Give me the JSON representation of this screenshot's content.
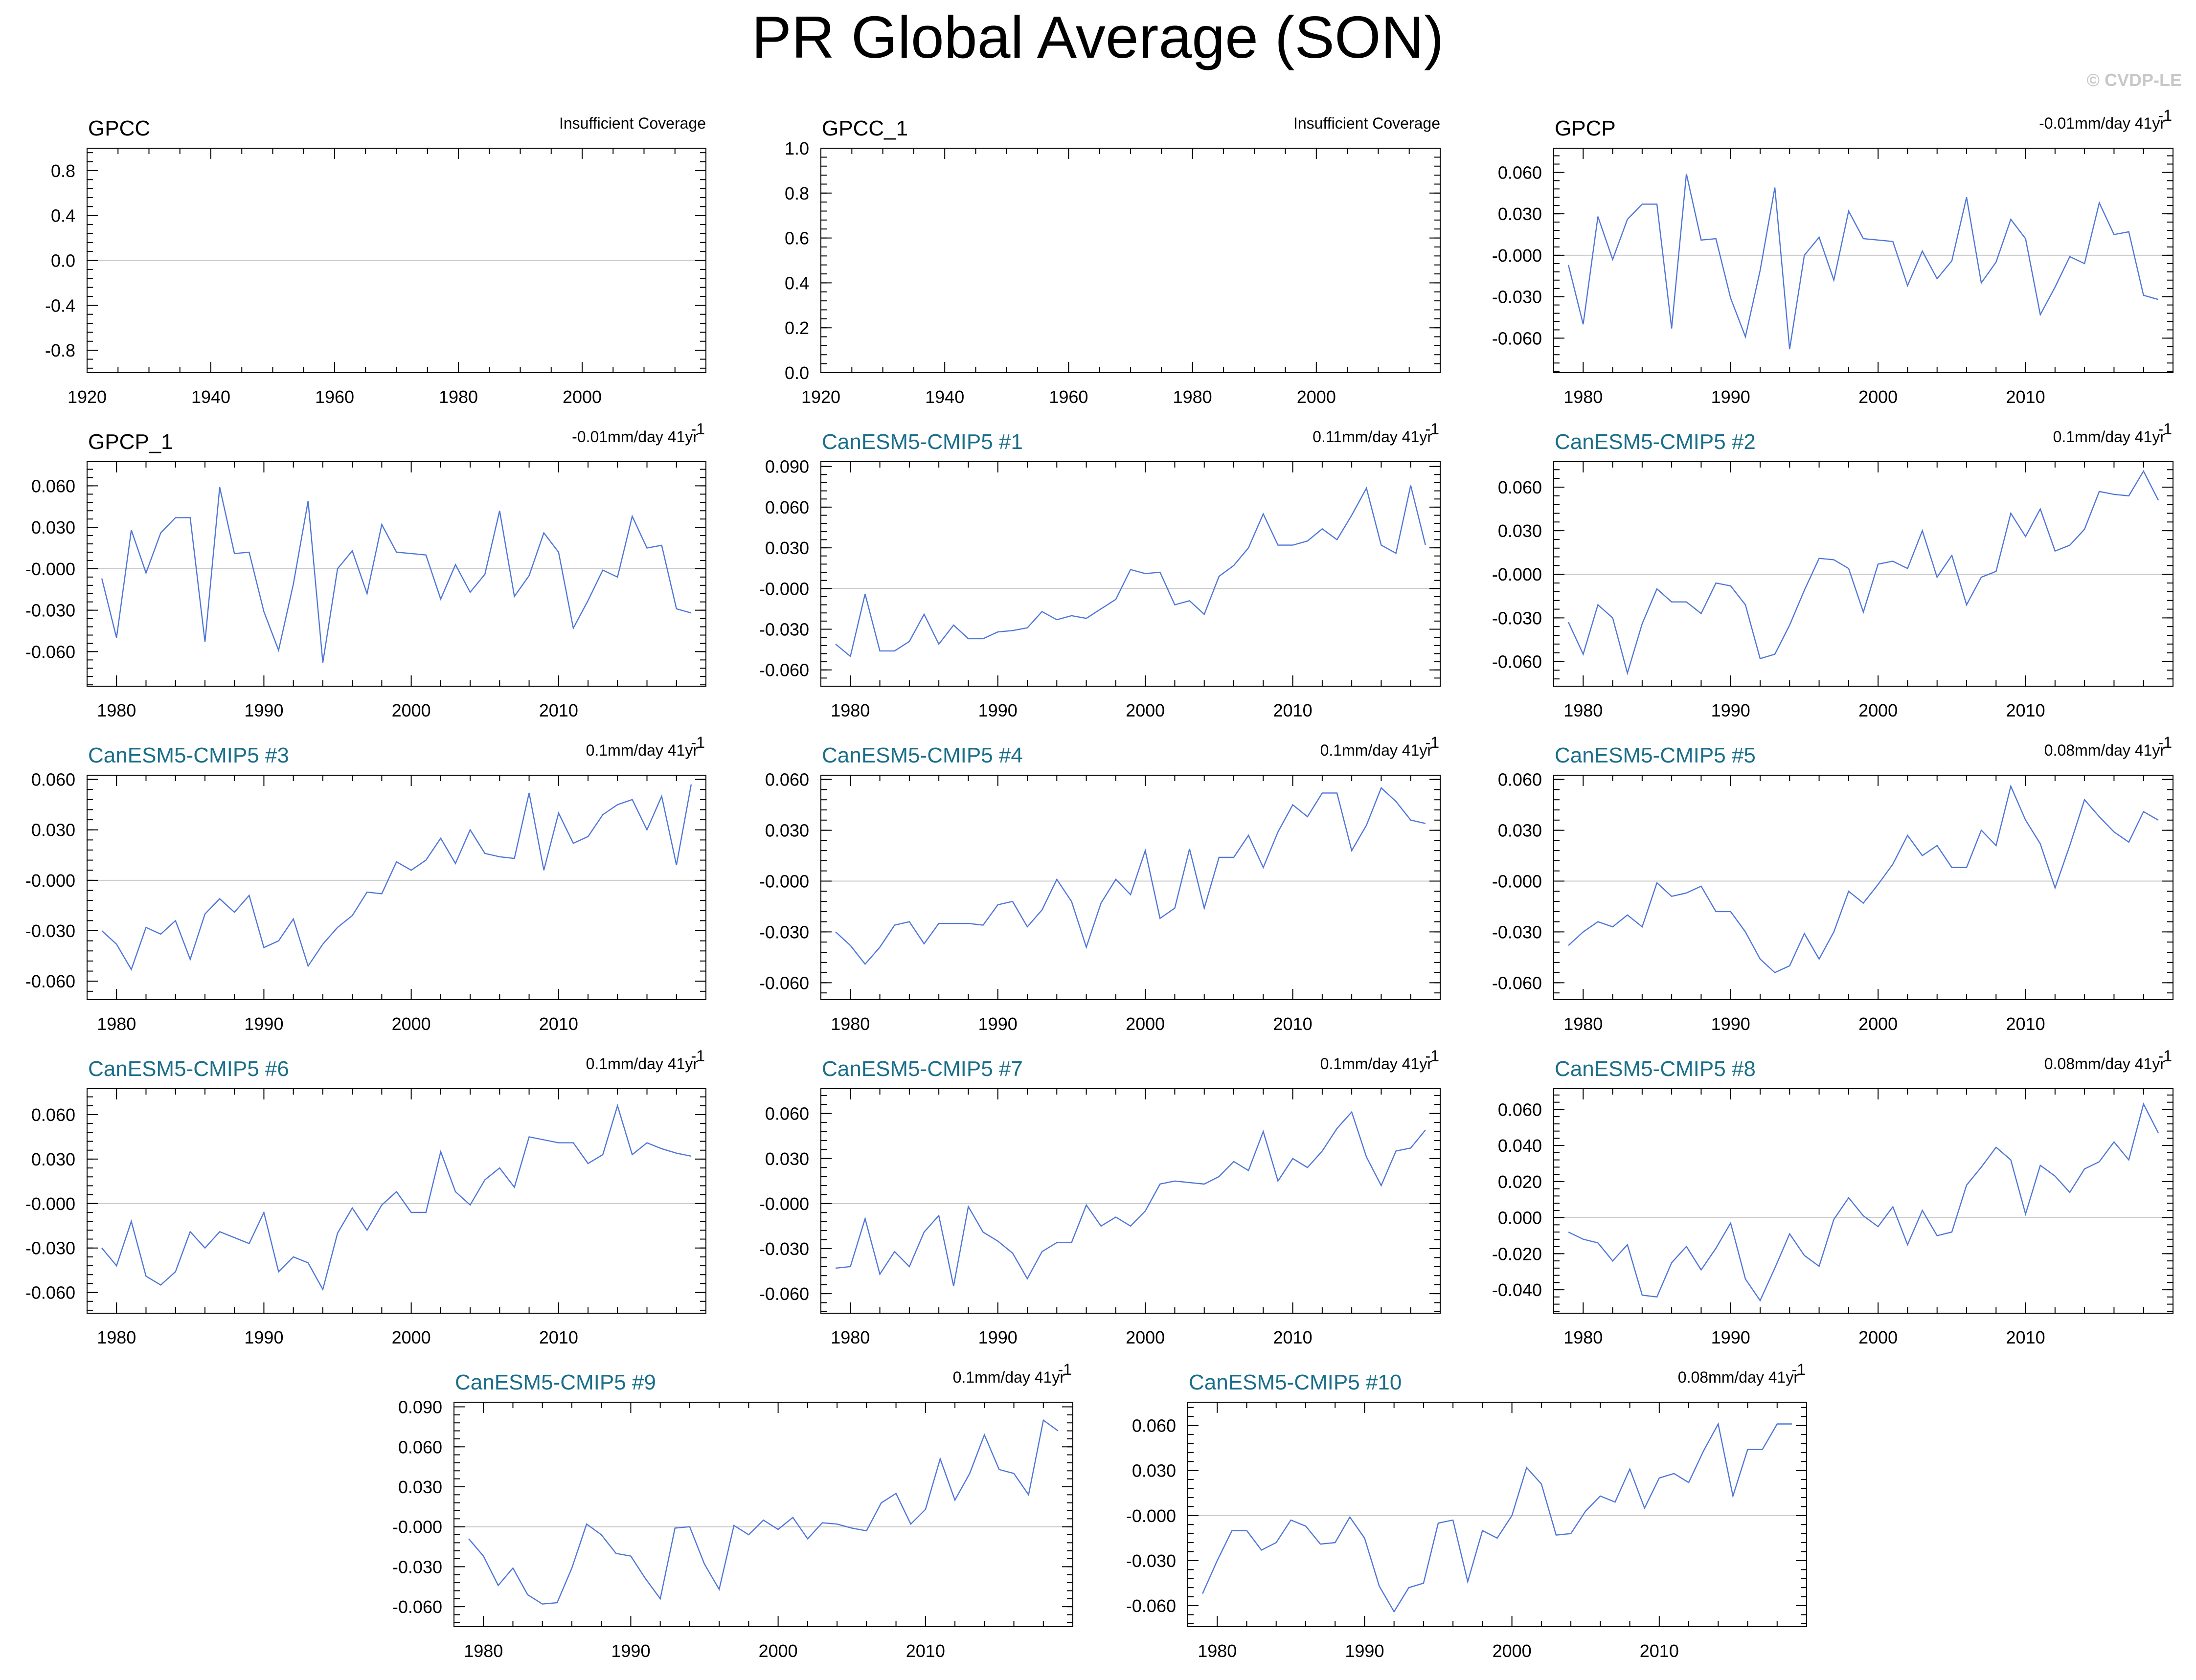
{
  "title": "PR Global Average (SON)",
  "copyright": "© CVDP-LE",
  "colors": {
    "series": "#4f76d9",
    "model_title": "#1a6e8a",
    "zero_line": "#c8c8c8"
  },
  "chart_data": [
    {
      "type": "line",
      "title": "GPCC",
      "title_style": "obs",
      "annotation": "Insufficient Coverage",
      "xlim": [
        1920,
        2020
      ],
      "ylim": [
        -1.0,
        1.0
      ],
      "xticks": [
        1920,
        1940,
        1960,
        1980,
        2000
      ],
      "yticks": [
        0.8,
        0.4,
        0.0,
        -0.4,
        -0.8
      ],
      "ytick_labels": [
        "0.8",
        "0.4",
        "0.0",
        "-0.4",
        "-0.8"
      ],
      "zero_line": true,
      "x": [],
      "y": []
    },
    {
      "type": "line",
      "title": "GPCC_1",
      "title_style": "obs",
      "annotation": "Insufficient Coverage",
      "xlim": [
        1920,
        2020
      ],
      "ylim": [
        0.0,
        1.0
      ],
      "xticks": [
        1920,
        1940,
        1960,
        1980,
        2000
      ],
      "yticks": [
        1.0,
        0.8,
        0.6,
        0.4,
        0.2,
        0.0
      ],
      "ytick_labels": [
        "1.0",
        "0.8",
        "0.6",
        "0.4",
        "0.2",
        "0.0"
      ],
      "zero_line": false,
      "x": [],
      "y": []
    },
    {
      "type": "line",
      "title": "GPCP",
      "title_style": "obs",
      "annotation": "-0.01mm/day 41yr",
      "xlim": [
        1978,
        2020
      ],
      "ylim": [
        -0.085,
        0.0775
      ],
      "xticks": [
        1980,
        1990,
        2000,
        2010
      ],
      "yticks": [
        0.06,
        0.03,
        0.0,
        -0.03,
        -0.06
      ],
      "ytick_labels": [
        "0.060",
        "0.030",
        "-0.000",
        "-0.030",
        "-0.060"
      ],
      "zero_line": true,
      "x_start": 1979,
      "y": [
        -0.007,
        -0.05,
        0.028,
        -0.003,
        0.026,
        0.037,
        0.037,
        -0.053,
        0.059,
        0.011,
        0.012,
        -0.031,
        -0.059,
        -0.011,
        0.049,
        -0.068,
        0.0,
        0.013,
        -0.018,
        0.032,
        0.012,
        0.011,
        0.01,
        -0.022,
        0.003,
        -0.017,
        -0.004,
        0.042,
        -0.02,
        -0.005,
        0.026,
        0.012,
        -0.043,
        -0.023,
        -0.001,
        -0.006,
        0.038,
        0.015,
        0.017,
        -0.029,
        -0.032
      ]
    },
    {
      "type": "line",
      "title": "GPCP_1",
      "title_style": "obs",
      "annotation": "-0.01mm/day 41yr",
      "xlim": [
        1978,
        2020
      ],
      "ylim": [
        -0.085,
        0.0775
      ],
      "xticks": [
        1980,
        1990,
        2000,
        2010
      ],
      "yticks": [
        0.06,
        0.03,
        0.0,
        -0.03,
        -0.06
      ],
      "ytick_labels": [
        "0.060",
        "0.030",
        "-0.000",
        "-0.030",
        "-0.060"
      ],
      "zero_line": true,
      "x_start": 1979,
      "y": [
        -0.007,
        -0.05,
        0.028,
        -0.003,
        0.026,
        0.037,
        0.037,
        -0.053,
        0.059,
        0.011,
        0.012,
        -0.031,
        -0.059,
        -0.011,
        0.049,
        -0.068,
        0.0,
        0.013,
        -0.018,
        0.032,
        0.012,
        0.011,
        0.01,
        -0.022,
        0.003,
        -0.017,
        -0.004,
        0.042,
        -0.02,
        -0.005,
        0.026,
        0.012,
        -0.043,
        -0.023,
        -0.001,
        -0.006,
        0.038,
        0.015,
        0.017,
        -0.029,
        -0.032
      ]
    },
    {
      "type": "line",
      "title": "CanESM5-CMIP5 #1",
      "title_style": "model",
      "annotation": "0.11mm/day 41yr",
      "xlim": [
        1978,
        2020
      ],
      "ylim": [
        -0.072,
        0.0935
      ],
      "xticks": [
        1980,
        1990,
        2000,
        2010
      ],
      "yticks": [
        0.09,
        0.06,
        0.03,
        0.0,
        -0.03,
        -0.06
      ],
      "ytick_labels": [
        "0.090",
        "0.060",
        "0.030",
        "-0.000",
        "-0.030",
        "-0.060"
      ],
      "zero_line": true,
      "x_start": 1979,
      "y": [
        -0.041,
        -0.05,
        -0.004,
        -0.046,
        -0.046,
        -0.039,
        -0.019,
        -0.041,
        -0.027,
        -0.037,
        -0.037,
        -0.032,
        -0.031,
        -0.029,
        -0.017,
        -0.023,
        -0.02,
        -0.022,
        -0.015,
        -0.008,
        0.014,
        0.011,
        0.012,
        -0.012,
        -0.009,
        -0.019,
        0.009,
        0.017,
        0.03,
        0.055,
        0.032,
        0.032,
        0.035,
        0.044,
        0.036,
        0.054,
        0.074,
        0.032,
        0.026,
        0.076,
        0.032
      ]
    },
    {
      "type": "line",
      "title": "CanESM5-CMIP5 #2",
      "title_style": "model",
      "annotation": "0.1mm/day 41yr",
      "xlim": [
        1978,
        2020
      ],
      "ylim": [
        -0.077,
        0.0775
      ],
      "xticks": [
        1980,
        1990,
        2000,
        2010
      ],
      "yticks": [
        0.06,
        0.03,
        0.0,
        -0.03,
        -0.06
      ],
      "ytick_labels": [
        "0.060",
        "0.030",
        "-0.000",
        "-0.030",
        "-0.060"
      ],
      "zero_line": true,
      "x_start": 1979,
      "y": [
        -0.033,
        -0.055,
        -0.021,
        -0.03,
        -0.068,
        -0.034,
        -0.01,
        -0.019,
        -0.019,
        -0.027,
        -0.006,
        -0.008,
        -0.021,
        -0.058,
        -0.055,
        -0.035,
        -0.011,
        0.011,
        0.01,
        0.004,
        -0.026,
        0.007,
        0.009,
        0.004,
        0.03,
        -0.002,
        0.013,
        -0.021,
        -0.002,
        0.002,
        0.042,
        0.026,
        0.045,
        0.016,
        0.02,
        0.031,
        0.057,
        0.055,
        0.054,
        0.071,
        0.051
      ]
    },
    {
      "type": "line",
      "title": "CanESM5-CMIP5 #3",
      "title_style": "model",
      "annotation": "0.1mm/day 41yr",
      "xlim": [
        1978,
        2020
      ],
      "ylim": [
        -0.071,
        0.0625
      ],
      "xticks": [
        1980,
        1990,
        2000,
        2010
      ],
      "yticks": [
        0.06,
        0.03,
        0.0,
        -0.03,
        -0.06
      ],
      "ytick_labels": [
        "0.060",
        "0.030",
        "-0.000",
        "-0.030",
        "-0.060"
      ],
      "zero_line": true,
      "x_start": 1979,
      "y": [
        -0.03,
        -0.038,
        -0.053,
        -0.028,
        -0.032,
        -0.024,
        -0.047,
        -0.02,
        -0.011,
        -0.019,
        -0.009,
        -0.04,
        -0.036,
        -0.023,
        -0.051,
        -0.038,
        -0.028,
        -0.021,
        -0.007,
        -0.008,
        0.011,
        0.006,
        0.012,
        0.025,
        0.01,
        0.03,
        0.016,
        0.014,
        0.013,
        0.052,
        0.006,
        0.04,
        0.022,
        0.026,
        0.039,
        0.045,
        0.048,
        0.03,
        0.05,
        0.009,
        0.057
      ]
    },
    {
      "type": "line",
      "title": "CanESM5-CMIP5 #4",
      "title_style": "model",
      "annotation": "0.1mm/day 41yr",
      "xlim": [
        1978,
        2020
      ],
      "ylim": [
        -0.07,
        0.0625
      ],
      "xticks": [
        1980,
        1990,
        2000,
        2010
      ],
      "yticks": [
        0.06,
        0.03,
        0.0,
        -0.03,
        -0.06
      ],
      "ytick_labels": [
        "0.060",
        "0.030",
        "-0.000",
        "-0.030",
        "-0.060"
      ],
      "zero_line": true,
      "x_start": 1979,
      "y": [
        -0.03,
        -0.038,
        -0.049,
        -0.039,
        -0.026,
        -0.024,
        -0.037,
        -0.025,
        -0.025,
        -0.025,
        -0.026,
        -0.014,
        -0.012,
        -0.027,
        -0.017,
        0.001,
        -0.012,
        -0.039,
        -0.013,
        0.001,
        -0.008,
        0.018,
        -0.022,
        -0.016,
        0.019,
        -0.016,
        0.014,
        0.014,
        0.027,
        0.008,
        0.029,
        0.045,
        0.038,
        0.052,
        0.052,
        0.018,
        0.033,
        0.055,
        0.047,
        0.036,
        0.034
      ]
    },
    {
      "type": "line",
      "title": "CanESM5-CMIP5 #5",
      "title_style": "model",
      "annotation": "0.08mm/day 41yr",
      "xlim": [
        1978,
        2020
      ],
      "ylim": [
        -0.07,
        0.0625
      ],
      "xticks": [
        1980,
        1990,
        2000,
        2010
      ],
      "yticks": [
        0.06,
        0.03,
        0.0,
        -0.03,
        -0.06
      ],
      "ytick_labels": [
        "0.060",
        "0.030",
        "-0.000",
        "-0.030",
        "-0.060"
      ],
      "zero_line": true,
      "x_start": 1979,
      "y": [
        -0.038,
        -0.03,
        -0.024,
        -0.027,
        -0.02,
        -0.027,
        -0.001,
        -0.009,
        -0.007,
        -0.003,
        -0.018,
        -0.018,
        -0.03,
        -0.046,
        -0.054,
        -0.05,
        -0.031,
        -0.046,
        -0.03,
        -0.006,
        -0.013,
        -0.002,
        0.01,
        0.027,
        0.015,
        0.021,
        0.008,
        0.008,
        0.03,
        0.021,
        0.056,
        0.036,
        0.022,
        -0.004,
        0.021,
        0.048,
        0.038,
        0.029,
        0.023,
        0.041,
        0.036
      ]
    },
    {
      "type": "line",
      "title": "CanESM5-CMIP5 #6",
      "title_style": "model",
      "annotation": "0.1mm/day 41yr",
      "xlim": [
        1978,
        2020
      ],
      "ylim": [
        -0.074,
        0.0775
      ],
      "xticks": [
        1980,
        1990,
        2000,
        2010
      ],
      "yticks": [
        0.06,
        0.03,
        0.0,
        -0.03,
        -0.06
      ],
      "ytick_labels": [
        "0.060",
        "0.030",
        "-0.000",
        "-0.030",
        "-0.060"
      ],
      "zero_line": true,
      "x_start": 1979,
      "y": [
        -0.03,
        -0.042,
        -0.012,
        -0.049,
        -0.055,
        -0.046,
        -0.019,
        -0.03,
        -0.019,
        -0.023,
        -0.027,
        -0.006,
        -0.046,
        -0.036,
        -0.04,
        -0.058,
        -0.02,
        -0.003,
        -0.018,
        -0.001,
        0.008,
        -0.006,
        -0.006,
        0.035,
        0.008,
        -0.001,
        0.016,
        0.024,
        0.011,
        0.045,
        0.043,
        0.041,
        0.041,
        0.027,
        0.033,
        0.066,
        0.033,
        0.041,
        0.037,
        0.034,
        0.032
      ]
    },
    {
      "type": "line",
      "title": "CanESM5-CMIP5 #7",
      "title_style": "model",
      "annotation": "0.1mm/day 41yr",
      "xlim": [
        1978,
        2020
      ],
      "ylim": [
        -0.073,
        0.0765
      ],
      "xticks": [
        1980,
        1990,
        2000,
        2010
      ],
      "yticks": [
        0.06,
        0.03,
        0.0,
        -0.03,
        -0.06
      ],
      "ytick_labels": [
        "0.060",
        "0.030",
        "-0.000",
        "-0.030",
        "-0.060"
      ],
      "zero_line": true,
      "x_start": 1979,
      "y": [
        -0.043,
        -0.042,
        -0.01,
        -0.047,
        -0.032,
        -0.042,
        -0.019,
        -0.008,
        -0.055,
        -0.002,
        -0.019,
        -0.025,
        -0.033,
        -0.05,
        -0.032,
        -0.026,
        -0.026,
        -0.001,
        -0.015,
        -0.009,
        -0.015,
        -0.005,
        0.013,
        0.015,
        0.014,
        0.013,
        0.018,
        0.028,
        0.022,
        0.048,
        0.015,
        0.03,
        0.024,
        0.035,
        0.05,
        0.061,
        0.031,
        0.012,
        0.035,
        0.037,
        0.049
      ]
    },
    {
      "type": "line",
      "title": "CanESM5-CMIP5 #8",
      "title_style": "model",
      "annotation": "0.08mm/day 41yr",
      "xlim": [
        1978,
        2020
      ],
      "ylim": [
        -0.053,
        0.0715
      ],
      "xticks": [
        1980,
        1990,
        2000,
        2010
      ],
      "yticks": [
        0.06,
        0.04,
        0.02,
        0.0,
        -0.02,
        -0.04
      ],
      "ytick_labels": [
        "0.060",
        "0.040",
        "0.020",
        "0.000",
        "-0.020",
        "-0.040"
      ],
      "zero_line": true,
      "x_start": 1979,
      "y": [
        -0.008,
        -0.012,
        -0.014,
        -0.024,
        -0.015,
        -0.043,
        -0.044,
        -0.025,
        -0.016,
        -0.029,
        -0.017,
        -0.003,
        -0.034,
        -0.046,
        -0.028,
        -0.009,
        -0.021,
        -0.027,
        -0.001,
        0.011,
        0.001,
        -0.005,
        0.006,
        -0.015,
        0.004,
        -0.01,
        -0.008,
        0.018,
        0.028,
        0.039,
        0.032,
        0.002,
        0.029,
        0.023,
        0.014,
        0.027,
        0.031,
        0.042,
        0.032,
        0.063,
        0.047
      ]
    },
    {
      "type": "line",
      "title": "CanESM5-CMIP5 #9",
      "title_style": "model",
      "annotation": "0.1mm/day 41yr",
      "xlim": [
        1978,
        2020
      ],
      "ylim": [
        -0.075,
        0.0935
      ],
      "xticks": [
        1980,
        1990,
        2000,
        2010
      ],
      "yticks": [
        0.09,
        0.06,
        0.03,
        0.0,
        -0.03,
        -0.06
      ],
      "ytick_labels": [
        "0.090",
        "0.060",
        "0.030",
        "-0.000",
        "-0.030",
        "-0.060"
      ],
      "zero_line": true,
      "x_start": 1979,
      "y": [
        -0.009,
        -0.022,
        -0.044,
        -0.031,
        -0.051,
        -0.058,
        -0.057,
        -0.031,
        0.002,
        -0.006,
        -0.02,
        -0.022,
        -0.039,
        -0.054,
        -0.001,
        0.0,
        -0.028,
        -0.047,
        0.001,
        -0.006,
        0.005,
        -0.002,
        0.007,
        -0.009,
        0.003,
        0.002,
        -0.001,
        -0.003,
        0.018,
        0.025,
        0.002,
        0.013,
        0.051,
        0.02,
        0.04,
        0.069,
        0.043,
        0.04,
        0.024,
        0.08,
        0.072
      ]
    },
    {
      "type": "line",
      "title": "CanESM5-CMIP5 #10",
      "title_style": "model",
      "annotation": "0.08mm/day 41yr",
      "xlim": [
        1978,
        2020
      ],
      "ylim": [
        -0.074,
        0.0755
      ],
      "xticks": [
        1980,
        1990,
        2000,
        2010
      ],
      "yticks": [
        0.06,
        0.03,
        0.0,
        -0.03,
        -0.06
      ],
      "ytick_labels": [
        "0.060",
        "0.030",
        "-0.000",
        "-0.030",
        "-0.060"
      ],
      "zero_line": true,
      "x_start": 1979,
      "y": [
        -0.052,
        -0.03,
        -0.01,
        -0.01,
        -0.023,
        -0.018,
        -0.003,
        -0.007,
        -0.019,
        -0.018,
        -0.001,
        -0.015,
        -0.047,
        -0.064,
        -0.048,
        -0.045,
        -0.005,
        -0.003,
        -0.044,
        -0.01,
        -0.015,
        0.0,
        0.032,
        0.021,
        -0.013,
        -0.012,
        0.003,
        0.013,
        0.009,
        0.031,
        0.005,
        0.025,
        0.028,
        0.022,
        0.043,
        0.061,
        0.013,
        0.044,
        0.044,
        0.061,
        0.061
      ]
    }
  ]
}
